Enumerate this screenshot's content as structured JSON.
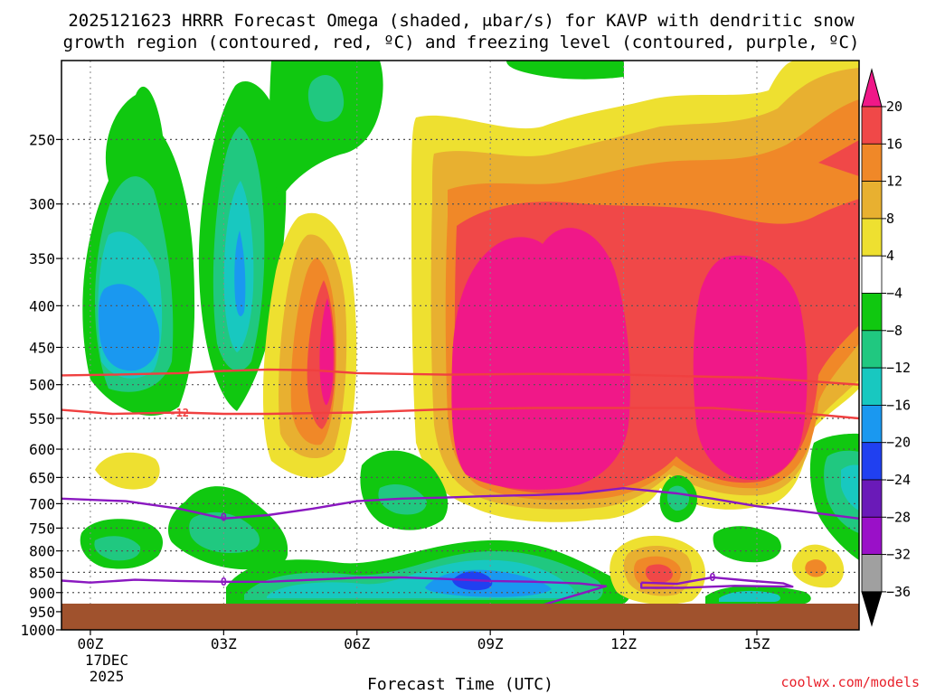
{
  "title_line1": "2025121623 HRRR Forecast Omega (shaded, μbar/s) for KAVP with dendritic snow",
  "title_line2": "growth region (contoured, red, ºC) and freezing level (contoured, purple, ºC)",
  "credit": "coolwx.com/models",
  "chart_data": {
    "type": "heatmap",
    "title": "2025121623 HRRR Forecast Omega (shaded, μbar/s) for KAVP with dendritic snow growth region (contoured, red, ºC) and freezing level (contoured, purple, ºC)",
    "xlabel": "Forecast Time (UTC)",
    "ylabel": "",
    "x_ticks": [
      "00Z",
      "03Z",
      "06Z",
      "09Z",
      "12Z",
      "15Z"
    ],
    "x_tick_hours": [
      0,
      3,
      6,
      9,
      12,
      15
    ],
    "x_date_label": [
      "17DEC",
      "2025"
    ],
    "xlim_hours": [
      -0.65,
      17.3
    ],
    "y_ticks": [
      250,
      300,
      350,
      400,
      450,
      500,
      550,
      600,
      650,
      700,
      750,
      800,
      850,
      900,
      950,
      1000
    ],
    "ylim_hpa": [
      1000,
      200
    ],
    "grid": true,
    "colorbar": {
      "levels": [
        -36,
        -32,
        -28,
        -24,
        -20,
        -16,
        -12,
        -8,
        -4,
        4,
        8,
        12,
        16,
        20
      ],
      "labels": [
        "20",
        "16",
        "12",
        "8",
        "4",
        "−4",
        "−8",
        "−12",
        "−16",
        "−20",
        "−24",
        "−28",
        "−32",
        "−36"
      ],
      "colors_low_to_high": [
        "#000000",
        "#a0a0a0",
        "#9a10c8",
        "#6a1ab8",
        "#2040f0",
        "#1a98f0",
        "#18c8c0",
        "#20c880",
        "#10c810",
        "#ffffff",
        "#eee030",
        "#e8b030",
        "#f08828",
        "#f04848",
        "#f01888"
      ]
    },
    "contour_labels": {
      "dgz": "-12",
      "freezing_upper": "0",
      "freezing_lower": "0",
      "freezing_right": "0"
    },
    "series": [
      {
        "name": "dendritic growth region top (-12)",
        "color": "#f04040",
        "points": [
          [
            -0.65,
            487
          ],
          [
            0.5,
            486
          ],
          [
            2,
            484
          ],
          [
            3,
            481
          ],
          [
            4,
            479
          ],
          [
            5,
            480
          ],
          [
            6,
            484
          ],
          [
            8,
            486
          ],
          [
            10,
            485
          ],
          [
            12,
            486
          ],
          [
            14,
            489
          ],
          [
            15,
            490
          ],
          [
            17.3,
            500
          ]
        ]
      },
      {
        "name": "dendritic growth region bottom (-12)",
        "color": "#f04040",
        "points": [
          [
            -0.65,
            537
          ],
          [
            0.5,
            543
          ],
          [
            2,
            541
          ],
          [
            3,
            543
          ],
          [
            4,
            543
          ],
          [
            5,
            542
          ],
          [
            6,
            541
          ],
          [
            8,
            536
          ],
          [
            10,
            534
          ],
          [
            12,
            534
          ],
          [
            14,
            534
          ],
          [
            15,
            539
          ],
          [
            16,
            542
          ],
          [
            17.3,
            550
          ]
        ]
      },
      {
        "name": "freezing level upper",
        "color": "#8a18c0",
        "points": [
          [
            -0.65,
            690
          ],
          [
            0.8,
            695
          ],
          [
            2,
            710
          ],
          [
            3,
            730
          ],
          [
            4,
            723
          ],
          [
            5,
            710
          ],
          [
            6,
            695
          ],
          [
            7,
            690
          ],
          [
            8,
            688
          ],
          [
            9,
            685
          ],
          [
            10,
            683
          ],
          [
            11,
            680
          ],
          [
            12,
            670
          ],
          [
            13.2,
            680
          ],
          [
            14,
            690
          ],
          [
            15,
            705
          ],
          [
            16,
            715
          ],
          [
            17.3,
            730
          ]
        ]
      },
      {
        "name": "freezing level lower",
        "color": "#8a18c0",
        "points": [
          [
            -0.65,
            870
          ],
          [
            0,
            875
          ],
          [
            1,
            868
          ],
          [
            2,
            871
          ],
          [
            3,
            873
          ],
          [
            4,
            873
          ],
          [
            5,
            868
          ],
          [
            6,
            863
          ],
          [
            7,
            862
          ],
          [
            8,
            866
          ],
          [
            9,
            871
          ],
          [
            10,
            873
          ],
          [
            11,
            877
          ],
          [
            11.6,
            884
          ],
          [
            9.9,
            942
          ],
          [
            11.6,
            962
          ]
        ]
      },
      {
        "name": "freezing level right loop",
        "color": "#8a18c0",
        "points": [
          [
            12.4,
            875
          ],
          [
            13.2,
            878
          ],
          [
            14,
            862
          ],
          [
            14.8,
            870
          ],
          [
            15.6,
            877
          ],
          [
            15.8,
            885
          ],
          [
            14.5,
            883
          ],
          [
            13.3,
            888
          ],
          [
            12.4,
            888
          ],
          [
            12.4,
            875
          ]
        ]
      }
    ]
  }
}
